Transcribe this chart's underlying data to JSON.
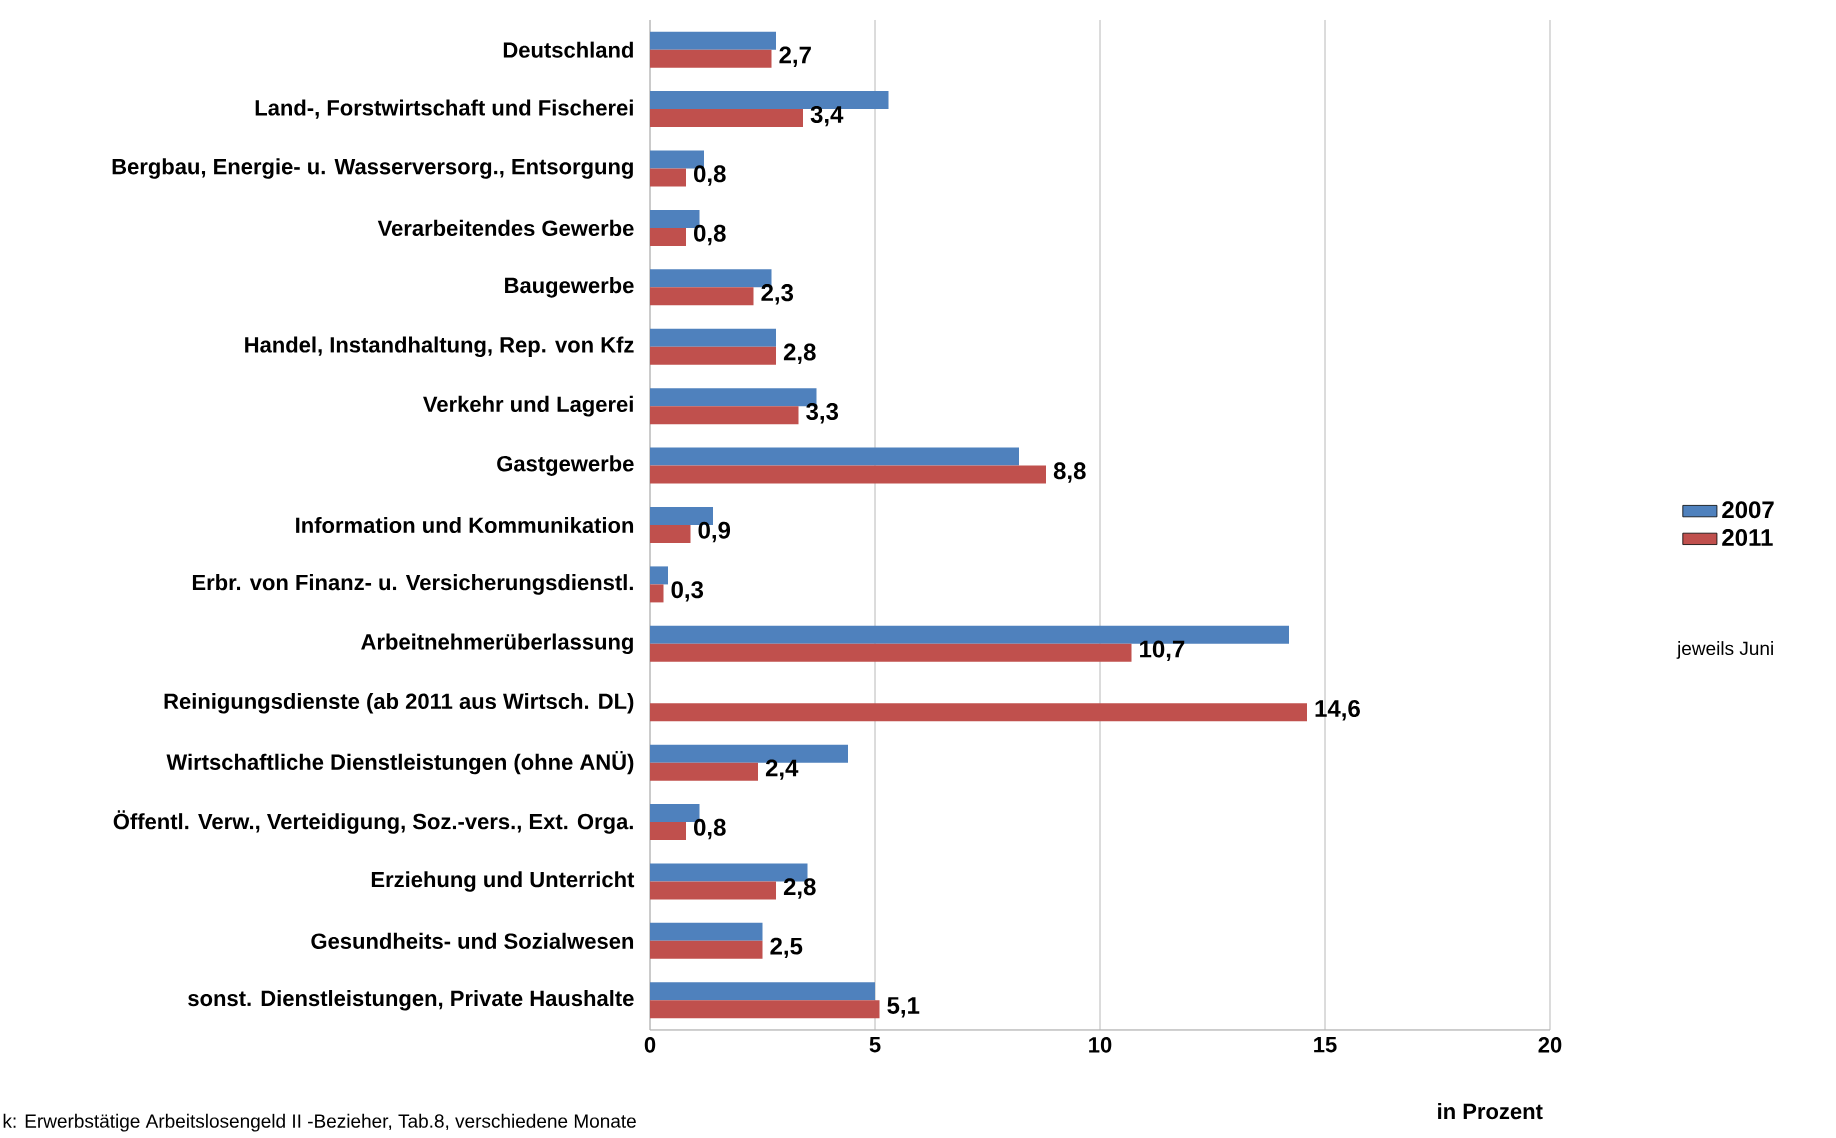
{
  "chart_data": {
    "type": "bar",
    "orientation": "horizontal",
    "categories": [
      "Deutschland",
      "Land-, Forstwirtschaft und Fischerei",
      "Bergbau, Energie- u. Wasserversorg., Entsorgung",
      "Verarbeitendes Gewerbe",
      "Baugewerbe",
      "Handel, Instandhaltung, Rep. von Kfz",
      "Verkehr und Lagerei",
      "Gastgewerbe",
      "Information und Kommunikation",
      "Erbr. von Finanz- u. Versicherungsdienstl.",
      "Arbeitnehmerüberlassung",
      "Reinigungsdienste (ab 2011 aus Wirtsch. DL)",
      "Wirtschaftliche Dienstleistungen (ohne ANÜ)",
      "Öffentl. Verw., Verteidigung, Soz.-vers., Ext. Orga.",
      "Erziehung und Unterricht",
      "Gesundheits- und Sozialwesen",
      "sonst. Dienstleistungen, Private Haushalte"
    ],
    "series": [
      {
        "name": "2007",
        "color": "#4f81bd",
        "values": [
          2.8,
          5.3,
          1.2,
          1.1,
          2.7,
          2.8,
          3.7,
          8.2,
          1.4,
          0.4,
          14.2,
          null,
          4.4,
          1.1,
          3.5,
          2.5,
          5.0
        ]
      },
      {
        "name": "2011",
        "color": "#c0504d",
        "values": [
          2.7,
          3.4,
          0.8,
          0.8,
          2.3,
          2.8,
          3.3,
          8.8,
          0.9,
          0.3,
          10.7,
          14.6,
          2.4,
          0.8,
          2.8,
          2.5,
          5.1
        ],
        "value_labels": [
          "2,7",
          "3,4",
          "0,8",
          "0,8",
          "2,3",
          "2,8",
          "3,3",
          "8,8",
          "0,9",
          "0,3",
          "10,7",
          "14,6",
          "2,4",
          "0,8",
          "2,8",
          "2,5",
          "5,1"
        ]
      }
    ],
    "xlim": [
      0,
      20
    ],
    "xticks": [
      0,
      5,
      10,
      15,
      20
    ],
    "grid": "x",
    "legend": "right",
    "xlabel": "in Prozent",
    "annotations": [
      "jeweils Juni",
      "k: Erwerbstätige Arbeitslosengeld II -Bezieher, Tab.8,  verschiedene Monate"
    ]
  }
}
